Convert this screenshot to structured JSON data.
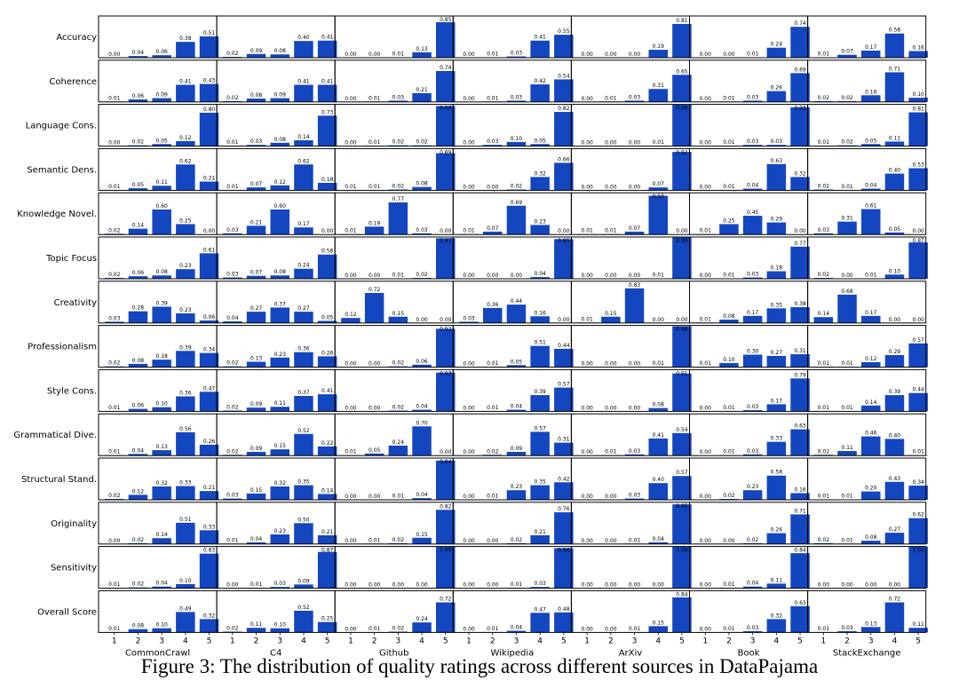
{
  "caption": "Figure 3: The distribution of quality ratings across different sources in DataPajama",
  "chart_data": {
    "type": "bar",
    "layout": "small multiples grid (rows = rating dimensions, columns = data sources)",
    "title": "",
    "xlabel": "",
    "ylabel": "",
    "x_categories": [
      "1",
      "2",
      "3",
      "4",
      "5"
    ],
    "ylim": [
      0,
      1
    ],
    "bar_color": "#1446bf",
    "columns": [
      "CommonCrawl",
      "C4",
      "Github",
      "Wikipedia",
      "ArXiv",
      "Book",
      "StackExchange"
    ],
    "rows": [
      {
        "label": "Accuracy",
        "values": [
          [
            0.0,
            0.04,
            0.06,
            0.38,
            0.51
          ],
          [
            0.02,
            0.09,
            0.08,
            0.4,
            0.41
          ],
          [
            0.0,
            0.0,
            0.01,
            0.13,
            0.85
          ],
          [
            0.0,
            0.01,
            0.03,
            0.41,
            0.55
          ],
          [
            0.0,
            0.0,
            0.0,
            0.19,
            0.81
          ],
          [
            0.0,
            0.0,
            0.01,
            0.24,
            0.74
          ],
          [
            0.01,
            0.07,
            0.17,
            0.58,
            0.16
          ]
        ]
      },
      {
        "label": "Coherence",
        "values": [
          [
            0.01,
            0.06,
            0.09,
            0.41,
            0.43
          ],
          [
            0.02,
            0.08,
            0.09,
            0.41,
            0.41
          ],
          [
            0.0,
            0.01,
            0.03,
            0.21,
            0.74
          ],
          [
            0.0,
            0.01,
            0.03,
            0.42,
            0.54
          ],
          [
            0.0,
            0.01,
            0.03,
            0.31,
            0.65
          ],
          [
            0.0,
            0.01,
            0.03,
            0.26,
            0.69
          ],
          [
            0.02,
            0.02,
            0.16,
            0.71,
            0.1
          ]
        ]
      },
      {
        "label": "Language Cons.",
        "values": [
          [
            0.0,
            0.02,
            0.05,
            0.12,
            0.8
          ],
          [
            0.01,
            0.03,
            0.08,
            0.14,
            0.73
          ],
          [
            0.0,
            0.01,
            0.02,
            0.02,
            0.96
          ],
          [
            0.0,
            0.03,
            0.1,
            0.05,
            0.82
          ],
          [
            0.0,
            0.0,
            0.0,
            0.01,
            0.99
          ],
          [
            0.0,
            0.01,
            0.03,
            0.03,
            0.93
          ],
          [
            0.01,
            0.02,
            0.05,
            0.11,
            0.81
          ]
        ]
      },
      {
        "label": "Semantic Dens.",
        "values": [
          [
            0.01,
            0.05,
            0.11,
            0.62,
            0.21
          ],
          [
            0.01,
            0.07,
            0.12,
            0.62,
            0.18
          ],
          [
            0.01,
            0.01,
            0.02,
            0.08,
            0.89
          ],
          [
            0.0,
            0.0,
            0.02,
            0.32,
            0.66
          ],
          [
            0.0,
            0.0,
            0.0,
            0.07,
            0.92
          ],
          [
            0.0,
            0.01,
            0.04,
            0.63,
            0.32
          ],
          [
            0.02,
            0.01,
            0.04,
            0.4,
            0.53
          ]
        ]
      },
      {
        "label": "Knowledge Novel.",
        "values": [
          [
            0.02,
            0.14,
            0.6,
            0.25,
            0.0
          ],
          [
            0.03,
            0.21,
            0.6,
            0.17,
            0.0
          ],
          [
            0.01,
            0.19,
            0.77,
            0.03,
            0.0
          ],
          [
            0.01,
            0.07,
            0.69,
            0.23,
            0.0
          ],
          [
            0.01,
            0.01,
            0.07,
            0.93,
            0.0
          ],
          [
            0.01,
            0.25,
            0.45,
            0.29,
            0.0
          ],
          [
            0.03,
            0.31,
            0.61,
            0.05,
            0.0
          ]
        ]
      },
      {
        "label": "Topic Focus",
        "values": [
          [
            0.02,
            0.06,
            0.08,
            0.23,
            0.61
          ],
          [
            0.03,
            0.07,
            0.08,
            0.24,
            0.58
          ],
          [
            0.0,
            0.0,
            0.01,
            0.02,
            0.97
          ],
          [
            0.0,
            0.0,
            0.0,
            0.04,
            0.95
          ],
          [
            0.0,
            0.0,
            0.0,
            0.01,
            0.99
          ],
          [
            0.0,
            0.01,
            0.03,
            0.18,
            0.77
          ],
          [
            0.02,
            0.0,
            0.01,
            0.1,
            0.87
          ]
        ]
      },
      {
        "label": "Creativity",
        "values": [
          [
            0.03,
            0.28,
            0.39,
            0.23,
            0.06
          ],
          [
            0.04,
            0.27,
            0.37,
            0.27,
            0.05
          ],
          [
            0.12,
            0.72,
            0.15,
            0.0,
            0.0
          ],
          [
            0.03,
            0.36,
            0.44,
            0.16,
            0.0
          ],
          [
            0.01,
            0.15,
            0.83,
            0.0,
            0.0
          ],
          [
            0.01,
            0.08,
            0.17,
            0.35,
            0.38
          ],
          [
            0.14,
            0.68,
            0.17,
            0.0,
            0.0
          ]
        ]
      },
      {
        "label": "Professionalism",
        "values": [
          [
            0.02,
            0.08,
            0.18,
            0.39,
            0.34
          ],
          [
            0.02,
            0.13,
            0.23,
            0.36,
            0.26
          ],
          [
            0.0,
            0.0,
            0.02,
            0.06,
            0.92
          ],
          [
            0.0,
            0.01,
            0.05,
            0.51,
            0.44
          ],
          [
            0.0,
            0.0,
            0.0,
            0.01,
            0.98
          ],
          [
            0.01,
            0.1,
            0.3,
            0.27,
            0.31
          ],
          [
            0.01,
            0.01,
            0.12,
            0.29,
            0.57
          ]
        ]
      },
      {
        "label": "Style Cons.",
        "values": [
          [
            0.01,
            0.06,
            0.1,
            0.36,
            0.47
          ],
          [
            0.02,
            0.09,
            0.11,
            0.37,
            0.41
          ],
          [
            0.0,
            0.0,
            0.02,
            0.04,
            0.93
          ],
          [
            0.0,
            0.01,
            0.04,
            0.39,
            0.57
          ],
          [
            0.0,
            0.0,
            0.0,
            0.08,
            0.91
          ],
          [
            0.0,
            0.01,
            0.03,
            0.17,
            0.79
          ],
          [
            0.01,
            0.01,
            0.14,
            0.39,
            0.44
          ]
        ]
      },
      {
        "label": "Grammatical Dive.",
        "values": [
          [
            0.01,
            0.04,
            0.13,
            0.56,
            0.26
          ],
          [
            0.02,
            0.09,
            0.15,
            0.52,
            0.22
          ],
          [
            0.01,
            0.05,
            0.24,
            0.7,
            0.0
          ],
          [
            0.0,
            0.02,
            0.09,
            0.57,
            0.31
          ],
          [
            0.0,
            0.01,
            0.03,
            0.41,
            0.54
          ],
          [
            0.0,
            0.01,
            0.03,
            0.33,
            0.63
          ],
          [
            0.02,
            0.11,
            0.46,
            0.4,
            0.01
          ]
        ]
      },
      {
        "label": "Structural Stand.",
        "values": [
          [
            0.02,
            0.12,
            0.32,
            0.33,
            0.21
          ],
          [
            0.03,
            0.15,
            0.32,
            0.35,
            0.14
          ],
          [
            0.0,
            0.0,
            0.01,
            0.04,
            0.94
          ],
          [
            0.0,
            0.01,
            0.23,
            0.35,
            0.42
          ],
          [
            0.0,
            0.0,
            0.03,
            0.4,
            0.57
          ],
          [
            0.0,
            0.02,
            0.23,
            0.58,
            0.16
          ],
          [
            0.01,
            0.01,
            0.2,
            0.43,
            0.34
          ]
        ]
      },
      {
        "label": "Originality",
        "values": [
          [
            0.0,
            0.02,
            0.14,
            0.51,
            0.33
          ],
          [
            0.01,
            0.04,
            0.23,
            0.5,
            0.21
          ],
          [
            0.0,
            0.01,
            0.02,
            0.15,
            0.82
          ],
          [
            0.0,
            0.0,
            0.02,
            0.21,
            0.76
          ],
          [
            0.0,
            0.0,
            0.01,
            0.04,
            0.95
          ],
          [
            0.0,
            0.0,
            0.02,
            0.26,
            0.71
          ],
          [
            0.02,
            0.01,
            0.08,
            0.27,
            0.62
          ]
        ]
      },
      {
        "label": "Sensitivity",
        "values": [
          [
            0.01,
            0.02,
            0.04,
            0.1,
            0.83
          ],
          [
            0.0,
            0.01,
            0.03,
            0.09,
            0.87
          ],
          [
            0.0,
            0.0,
            0.0,
            0.0,
            1.0
          ],
          [
            0.0,
            0.0,
            0.01,
            0.03,
            0.96
          ],
          [
            0.0,
            0.0,
            0.0,
            0.0,
            1.0
          ],
          [
            0.0,
            0.01,
            0.04,
            0.11,
            0.84
          ],
          [
            0.0,
            0.0,
            0.0,
            0.0,
            1.0
          ]
        ]
      },
      {
        "label": "Overall Score",
        "values": [
          [
            0.01,
            0.08,
            0.1,
            0.49,
            0.32
          ],
          [
            0.02,
            0.11,
            0.1,
            0.52,
            0.25
          ],
          [
            0.0,
            0.01,
            0.02,
            0.24,
            0.72
          ],
          [
            0.0,
            0.01,
            0.04,
            0.47,
            0.48
          ],
          [
            0.0,
            0.0,
            0.01,
            0.15,
            0.84
          ],
          [
            0.0,
            0.01,
            0.03,
            0.32,
            0.63
          ],
          [
            0.01,
            0.03,
            0.13,
            0.72,
            0.11
          ]
        ]
      }
    ]
  }
}
